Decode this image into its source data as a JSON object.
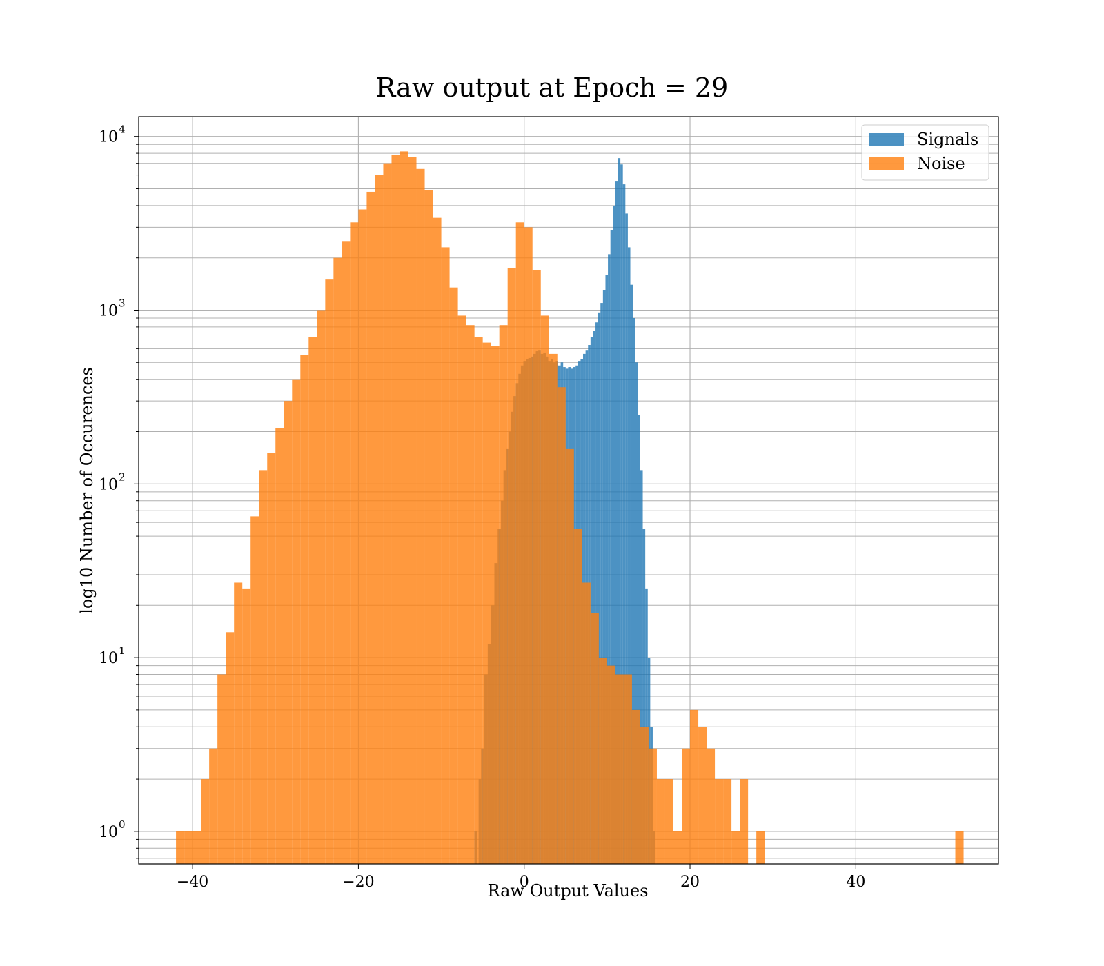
{
  "chart_data": {
    "type": "bar",
    "title": "Raw output at Epoch = 29",
    "xlabel": "Raw Output Values",
    "ylabel": "log10 Number of Occurences",
    "y_scale": "log",
    "xlim": [
      -46.5,
      57.2
    ],
    "ylim": [
      0.65,
      13000
    ],
    "x_ticks": [
      -40,
      -20,
      0,
      20,
      40
    ],
    "x_tick_labels": [
      "−40",
      "−20",
      "0",
      "20",
      "40"
    ],
    "y_ticks": [
      {
        "value": 1,
        "base": "10",
        "exp": "0"
      },
      {
        "value": 10,
        "base": "10",
        "exp": "1"
      },
      {
        "value": 100,
        "base": "10",
        "exp": "2"
      },
      {
        "value": 1000,
        "base": "10",
        "exp": "3"
      },
      {
        "value": 10000,
        "base": "10",
        "exp": "4"
      }
    ],
    "grid": true,
    "legend_position": "top-right",
    "series": [
      {
        "name": "Signals",
        "color": "#1f77b4",
        "opacity": 0.8,
        "bins": [
          [
            -6,
            1
          ],
          [
            -5.5,
            2
          ],
          [
            -5.2,
            3
          ],
          [
            -4.8,
            8
          ],
          [
            -4.4,
            12
          ],
          [
            -4.0,
            20
          ],
          [
            -3.6,
            35
          ],
          [
            -3.2,
            55
          ],
          [
            -2.8,
            80
          ],
          [
            -2.5,
            120
          ],
          [
            -2.2,
            160
          ],
          [
            -1.9,
            200
          ],
          [
            -1.6,
            260
          ],
          [
            -1.3,
            320
          ],
          [
            -1.0,
            380
          ],
          [
            -0.7,
            430
          ],
          [
            -0.4,
            480
          ],
          [
            -0.1,
            510
          ],
          [
            0.2,
            520
          ],
          [
            0.5,
            530
          ],
          [
            0.8,
            540
          ],
          [
            1.1,
            560
          ],
          [
            1.4,
            580
          ],
          [
            1.7,
            590
          ],
          [
            2.0,
            560
          ],
          [
            2.3,
            570
          ],
          [
            2.6,
            540
          ],
          [
            2.9,
            510
          ],
          [
            3.2,
            520
          ],
          [
            3.5,
            500
          ],
          [
            3.8,
            510
          ],
          [
            4.1,
            480
          ],
          [
            4.4,
            500
          ],
          [
            4.7,
            470
          ],
          [
            5.0,
            460
          ],
          [
            5.3,
            470
          ],
          [
            5.6,
            460
          ],
          [
            5.9,
            470
          ],
          [
            6.2,
            480
          ],
          [
            6.5,
            510
          ],
          [
            6.8,
            520
          ],
          [
            7.1,
            560
          ],
          [
            7.4,
            590
          ],
          [
            7.7,
            630
          ],
          [
            8.0,
            700
          ],
          [
            8.3,
            760
          ],
          [
            8.6,
            850
          ],
          [
            8.9,
            970
          ],
          [
            9.2,
            1100
          ],
          [
            9.5,
            1300
          ],
          [
            9.8,
            1600
          ],
          [
            10.1,
            2100
          ],
          [
            10.4,
            2900
          ],
          [
            10.7,
            4000
          ],
          [
            11.0,
            5500
          ],
          [
            11.3,
            7500
          ],
          [
            11.6,
            6900
          ],
          [
            11.9,
            5300
          ],
          [
            12.2,
            3600
          ],
          [
            12.5,
            2300
          ],
          [
            12.8,
            1400
          ],
          [
            13.1,
            900
          ],
          [
            13.4,
            500
          ],
          [
            13.7,
            250
          ],
          [
            14.0,
            120
          ],
          [
            14.3,
            55
          ],
          [
            14.6,
            25
          ],
          [
            14.9,
            10
          ],
          [
            15.2,
            4
          ],
          [
            15.5,
            1
          ]
        ]
      },
      {
        "name": "Noise",
        "color": "#ff7f0e",
        "opacity": 0.8,
        "bins": [
          [
            -42.0,
            1
          ],
          [
            -41.0,
            1
          ],
          [
            -40.0,
            1
          ],
          [
            -39.0,
            2
          ],
          [
            -38.0,
            3
          ],
          [
            -37.0,
            8
          ],
          [
            -36.0,
            14
          ],
          [
            -35.0,
            27
          ],
          [
            -34.0,
            25
          ],
          [
            -33.0,
            65
          ],
          [
            -32.0,
            120
          ],
          [
            -31.0,
            150
          ],
          [
            -30.0,
            210
          ],
          [
            -29.0,
            300
          ],
          [
            -28.0,
            400
          ],
          [
            -27.0,
            550
          ],
          [
            -26.0,
            700
          ],
          [
            -25.0,
            1000
          ],
          [
            -24.0,
            1500
          ],
          [
            -23.0,
            2000
          ],
          [
            -22.0,
            2500
          ],
          [
            -21.0,
            3200
          ],
          [
            -20.0,
            3800
          ],
          [
            -19.0,
            4800
          ],
          [
            -18.0,
            6000
          ],
          [
            -17.0,
            7000
          ],
          [
            -16.0,
            7800
          ],
          [
            -15.0,
            8200
          ],
          [
            -14.0,
            7600
          ],
          [
            -13.0,
            6500
          ],
          [
            -12.0,
            4900
          ],
          [
            -11.0,
            3400
          ],
          [
            -10.0,
            2300
          ],
          [
            -9.0,
            1350
          ],
          [
            -8.0,
            930
          ],
          [
            -7.0,
            820
          ],
          [
            -6.0,
            700
          ],
          [
            -5.0,
            650
          ],
          [
            -4.0,
            620
          ],
          [
            -3.0,
            820
          ],
          [
            -2.0,
            1750
          ],
          [
            -1.0,
            3200
          ],
          [
            0.0,
            3000
          ],
          [
            1.0,
            1700
          ],
          [
            2.0,
            930
          ],
          [
            3.0,
            560
          ],
          [
            4.0,
            360
          ],
          [
            5.0,
            160
          ],
          [
            6.0,
            55
          ],
          [
            7.0,
            27
          ],
          [
            8.0,
            18
          ],
          [
            9.0,
            10
          ],
          [
            10.0,
            9
          ],
          [
            11.0,
            8
          ],
          [
            12.0,
            8
          ],
          [
            13.0,
            5
          ],
          [
            14.0,
            4
          ],
          [
            15.0,
            3
          ],
          [
            16.0,
            2
          ],
          [
            17.0,
            2
          ],
          [
            18.0,
            1
          ],
          [
            19.0,
            3
          ],
          [
            20.0,
            5
          ],
          [
            21.0,
            4
          ],
          [
            22.0,
            3
          ],
          [
            23.0,
            2
          ],
          [
            24.0,
            2
          ],
          [
            25.0,
            1
          ],
          [
            26.0,
            2
          ],
          [
            28.0,
            1
          ],
          [
            52.0,
            1
          ]
        ]
      }
    ]
  }
}
